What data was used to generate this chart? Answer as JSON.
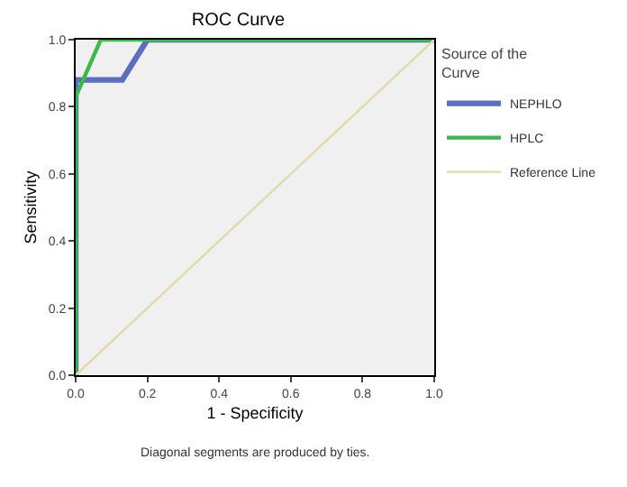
{
  "chart_data": {
    "type": "line",
    "title": "ROC Curve",
    "xlabel": "1 - Specificity",
    "ylabel": "Sensitivity",
    "legend_title": "Source of the Curve",
    "annotations": [
      "Diagonal segments are produced by ties."
    ],
    "series": [
      {
        "name": "NEPHLO",
        "color": "#5b6fbf",
        "x": [
          0,
          0,
          0.13,
          0.2,
          1
        ],
        "values": [
          0,
          0.88,
          0.88,
          1,
          1
        ]
      },
      {
        "name": "HPLC",
        "color": "#3cb94a",
        "x": [
          0,
          0,
          0.07,
          1
        ],
        "values": [
          0,
          0.83,
          1,
          1
        ]
      },
      {
        "name": "Reference Line",
        "color": "#e0dba8",
        "x": [
          0,
          1
        ],
        "values": [
          0,
          1
        ]
      }
    ],
    "xlim": [
      0,
      1
    ],
    "ylim": [
      0,
      1
    ],
    "xticks": [
      {
        "value": 0,
        "label": "0.0"
      },
      0.2,
      0.4,
      0.6,
      0.8,
      {
        "value": 1,
        "label": "1.0"
      }
    ],
    "yticks": [
      {
        "value": 0,
        "label": "0.0"
      },
      0.2,
      0.4,
      0.6,
      0.8,
      {
        "value": 1,
        "label": "1.0"
      }
    ],
    "grid": false,
    "legend": "right",
    "marker": "none",
    "line_style": "solid"
  }
}
